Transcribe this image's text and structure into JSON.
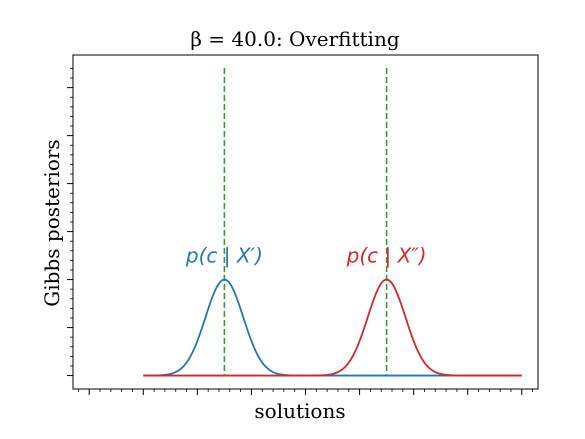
{
  "chart_data": {
    "type": "line",
    "title": "β = 40.0: Overfitting",
    "xlabel": "solutions",
    "ylabel": "Gibbs posteriors",
    "xlim": [
      -4.3,
      4.3
    ],
    "ylim": [
      -0.14,
      3.34
    ],
    "grid": false,
    "x_tick_labels_shown": false,
    "y_tick_labels_shown": false,
    "series": [
      {
        "name": "p(c | X′)",
        "color": "#1f77b4",
        "shape": "gaussian",
        "mean": -1.5,
        "std": 0.35,
        "peak": 1.0,
        "x_range": [
          -3.0,
          4.0
        ]
      },
      {
        "name": "p(c | X″)",
        "color": "#d62728",
        "shape": "gaussian",
        "mean": 1.5,
        "std": 0.35,
        "peak": 1.0,
        "x_range": [
          -3.0,
          4.0
        ]
      }
    ],
    "vlines": [
      {
        "x": -1.5,
        "color": "#2ca02c",
        "style": "dashed"
      },
      {
        "x": 1.5,
        "color": "#2ca02c",
        "style": "dashed"
      }
    ],
    "annotations": [
      {
        "text": "p(c | X′)",
        "x": -1.5,
        "y": 1.18,
        "color": "#1f77b4"
      },
      {
        "text": "p(c | X″)",
        "x": 1.5,
        "y": 1.18,
        "color": "#d62728"
      }
    ]
  }
}
